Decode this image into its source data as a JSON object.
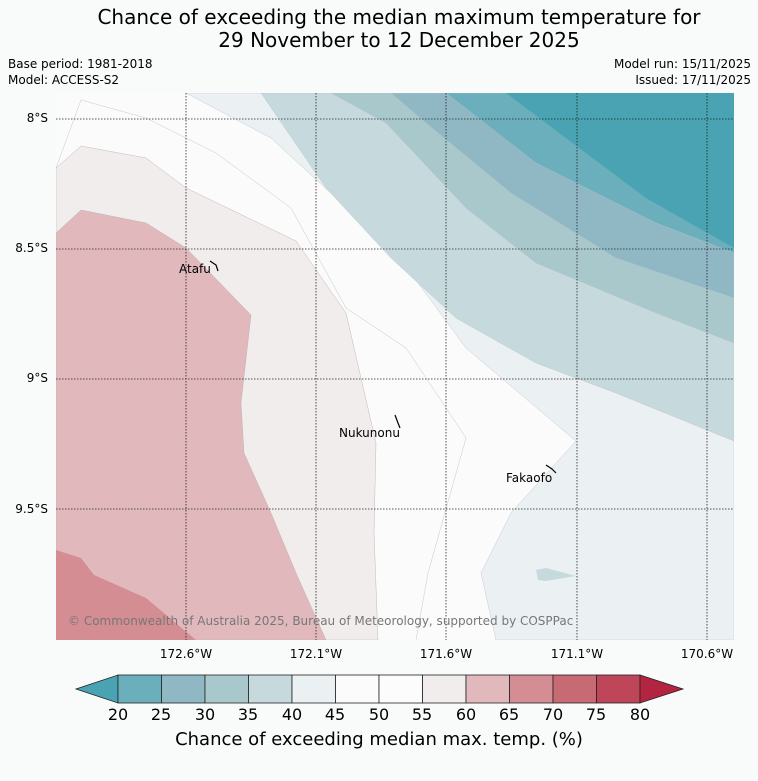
{
  "title": {
    "line1": "Chance of exceeding the median maximum temperature for",
    "line2": "29 November to 12 December 2025"
  },
  "meta": {
    "base_period": "Base period: 1981-2018",
    "model": "Model: ACCESS-S2",
    "model_run": "Model run: 15/11/2025",
    "issued": "Issued: 17/11/2025"
  },
  "map": {
    "lat_labels": [
      "8°S",
      "8.5°S",
      "9°S",
      "9.5°S"
    ],
    "lon_labels": [
      "172.6°W",
      "172.1°W",
      "171.6°W",
      "171.1°W",
      "170.6°W"
    ],
    "places": [
      "Atafu",
      "Nukunonu",
      "Fakaofo"
    ],
    "copyright": "© Commonwealth of Australia 2025, Bureau of Meteorology, supported by COSPPac"
  },
  "colorbar": {
    "ticks": [
      "20",
      "25",
      "30",
      "35",
      "40",
      "45",
      "50",
      "55",
      "60",
      "65",
      "70",
      "75",
      "80"
    ],
    "label": "Chance of exceeding median max. temp. (%)",
    "colors": [
      "#4aa3b3",
      "#6aafbb",
      "#8fb8c4",
      "#a9c8cc",
      "#c6dade",
      "#ebf0f2",
      "#fafbfa",
      "#fcfcfc",
      "#f0edec",
      "#e1b9bd",
      "#d58d94",
      "#c86a74",
      "#bf4558",
      "#b32440"
    ]
  }
}
